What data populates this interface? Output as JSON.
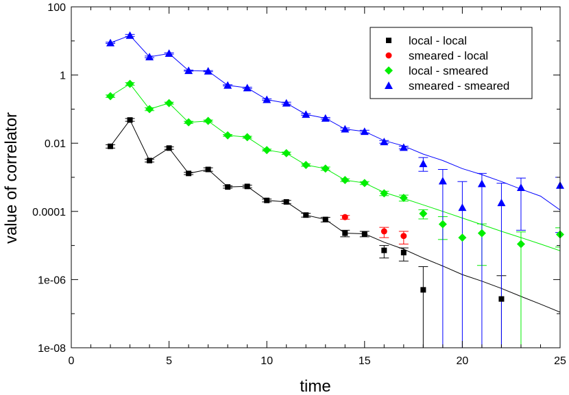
{
  "chart_data": {
    "type": "scatter",
    "title": "",
    "xlabel": "time",
    "ylabel": "value of correlator",
    "xlim": [
      0,
      25
    ],
    "ylim": [
      1e-08,
      100
    ],
    "yscale": "log",
    "grid": false,
    "legend_position": "top-right",
    "x_ticks": [
      0,
      5,
      10,
      15,
      20,
      25
    ],
    "x_tick_labels": [
      "0",
      "5",
      "10",
      "15",
      "20",
      "25"
    ],
    "y_ticks": [
      1e-08,
      1e-06,
      0.0001,
      0.01,
      1,
      100
    ],
    "y_tick_labels": [
      "1e-08",
      "1e-06",
      "0.0001",
      "0.01",
      "1",
      "100"
    ],
    "series": [
      {
        "name": "local - local",
        "color": "#000000",
        "marker": "square",
        "points": [
          {
            "x": 2,
            "y": 0.0081,
            "lo": 0.0072,
            "hi": 0.009
          },
          {
            "x": 3,
            "y": 0.048,
            "lo": 0.044,
            "hi": 0.053
          },
          {
            "x": 4,
            "y": 0.0031,
            "lo": 0.0028,
            "hi": 0.0034
          },
          {
            "x": 5,
            "y": 0.0072,
            "lo": 0.0066,
            "hi": 0.0078
          },
          {
            "x": 6,
            "y": 0.0013,
            "lo": 0.0012,
            "hi": 0.0014
          },
          {
            "x": 7,
            "y": 0.0017,
            "lo": 0.0015,
            "hi": 0.0019
          },
          {
            "x": 8,
            "y": 0.00052,
            "lo": 0.00048,
            "hi": 0.00056
          },
          {
            "x": 9,
            "y": 0.00054,
            "lo": 0.00049,
            "hi": 0.00059
          },
          {
            "x": 10,
            "y": 0.00021,
            "lo": 0.00019,
            "hi": 0.00023
          },
          {
            "x": 11,
            "y": 0.00019,
            "lo": 0.00017,
            "hi": 0.00021
          },
          {
            "x": 12,
            "y": 7.8e-05,
            "lo": 6.8e-05,
            "hi": 8.8e-05
          },
          {
            "x": 13,
            "y": 5.8e-05,
            "lo": 4.9e-05,
            "hi": 6.7e-05
          },
          {
            "x": 14,
            "y": 2.3e-05,
            "lo": 1.8e-05,
            "hi": 2.8e-05
          },
          {
            "x": 15,
            "y": 2.2e-05,
            "lo": 1.8e-05,
            "hi": 2.6e-05
          },
          {
            "x": 16,
            "y": 7.2e-06,
            "lo": 4.3e-06,
            "hi": 1e-05
          },
          {
            "x": 17,
            "y": 6.2e-06,
            "lo": 3.5e-06,
            "hi": 8.5e-06
          },
          {
            "x": 18,
            "y": 5e-07,
            "lo": 1e-08,
            "hi": 2.4e-06
          },
          {
            "x": 22,
            "y": 2.7e-07,
            "lo": 1e-08,
            "hi": 1.3e-06
          }
        ],
        "fit": [
          [
            2,
            0.0081
          ],
          [
            3,
            0.048
          ],
          [
            4,
            0.0031
          ],
          [
            5,
            0.0072
          ],
          [
            6,
            0.0013
          ],
          [
            7,
            0.0017
          ],
          [
            8,
            0.00052
          ],
          [
            9,
            0.00054
          ],
          [
            10,
            0.00021
          ],
          [
            11,
            0.00019
          ],
          [
            12,
            7.8e-05
          ],
          [
            13,
            5.8e-05
          ],
          [
            14,
            2.3e-05
          ],
          [
            15,
            2.2e-05
          ],
          [
            16,
            1.25e-05
          ],
          [
            17,
            7.8e-06
          ],
          [
            18,
            4.3e-06
          ],
          [
            19,
            2.5e-06
          ],
          [
            20,
            1.4e-06
          ],
          [
            21,
            9e-07
          ],
          [
            22,
            5.5e-07
          ],
          [
            23,
            3.2e-07
          ],
          [
            24,
            1.9e-07
          ],
          [
            25,
            1.1e-07
          ]
        ]
      },
      {
        "name": "smeared - local",
        "color": "#ff0000",
        "marker": "circle",
        "points": [
          {
            "x": 14,
            "y": 6.8e-05,
            "lo": 5.9e-05,
            "hi": 7.6e-05
          },
          {
            "x": 16,
            "y": 2.6e-05,
            "lo": 1.7e-05,
            "hi": 3.4e-05
          },
          {
            "x": 17,
            "y": 1.9e-05,
            "lo": 1.1e-05,
            "hi": 2.6e-05
          }
        ]
      },
      {
        "name": "local - smeared",
        "color": "#00ee00",
        "marker": "diamond",
        "points": [
          {
            "x": 2,
            "y": 0.24,
            "lo": 0.22,
            "hi": 0.26
          },
          {
            "x": 3,
            "y": 0.55,
            "lo": 0.5,
            "hi": 0.6
          },
          {
            "x": 4,
            "y": 0.1,
            "lo": 0.09,
            "hi": 0.11
          },
          {
            "x": 5,
            "y": 0.15,
            "lo": 0.14,
            "hi": 0.16
          },
          {
            "x": 6,
            "y": 0.041,
            "lo": 0.038,
            "hi": 0.044
          },
          {
            "x": 7,
            "y": 0.045,
            "lo": 0.042,
            "hi": 0.048
          },
          {
            "x": 8,
            "y": 0.017,
            "lo": 0.016,
            "hi": 0.018
          },
          {
            "x": 9,
            "y": 0.015,
            "lo": 0.014,
            "hi": 0.016
          },
          {
            "x": 10,
            "y": 0.0063,
            "lo": 0.0059,
            "hi": 0.0067
          },
          {
            "x": 11,
            "y": 0.0051,
            "lo": 0.0047,
            "hi": 0.0055
          },
          {
            "x": 12,
            "y": 0.0023,
            "lo": 0.0021,
            "hi": 0.0025
          },
          {
            "x": 13,
            "y": 0.0018,
            "lo": 0.0016,
            "hi": 0.002
          },
          {
            "x": 14,
            "y": 0.00083,
            "lo": 0.00075,
            "hi": 0.00091
          },
          {
            "x": 15,
            "y": 0.00068,
            "lo": 0.00061,
            "hi": 0.00075
          },
          {
            "x": 16,
            "y": 0.00034,
            "lo": 0.00029,
            "hi": 0.00039
          },
          {
            "x": 17,
            "y": 0.00025,
            "lo": 0.0002,
            "hi": 0.0003
          },
          {
            "x": 18,
            "y": 8.6e-05,
            "lo": 6e-05,
            "hi": 0.000112
          },
          {
            "x": 19,
            "y": 4.2e-05,
            "lo": 1.5e-05,
            "hi": 7e-05
          },
          {
            "x": 20,
            "y": 1.7e-05
          },
          {
            "x": 21,
            "y": 2.3e-05,
            "lo": 2.6e-06,
            "hi": 4.3e-05
          },
          {
            "x": 23,
            "y": 1.1e-05,
            "lo": 1e-08,
            "hi": 2.5e-05
          },
          {
            "x": 25,
            "y": 2.1e-05,
            "lo": 9e-06,
            "hi": 3.3e-05
          }
        ],
        "fit": [
          [
            2,
            0.24
          ],
          [
            3,
            0.55
          ],
          [
            4,
            0.1
          ],
          [
            5,
            0.15
          ],
          [
            6,
            0.041
          ],
          [
            7,
            0.045
          ],
          [
            8,
            0.017
          ],
          [
            9,
            0.015
          ],
          [
            10,
            0.0063
          ],
          [
            11,
            0.0051
          ],
          [
            12,
            0.0023
          ],
          [
            13,
            0.0018
          ],
          [
            14,
            0.00083
          ],
          [
            15,
            0.00068
          ],
          [
            16,
            0.00036
          ],
          [
            17,
            0.00024
          ],
          [
            18,
            0.000155
          ],
          [
            19,
            0.0001
          ],
          [
            20,
            6.4e-05
          ],
          [
            21,
            4.1e-05
          ],
          [
            22,
            2.6e-05
          ],
          [
            23,
            1.7e-05
          ],
          [
            24,
            1.1e-05
          ],
          [
            25,
            7e-06
          ]
        ]
      },
      {
        "name": "smeared - smeared",
        "color": "#0000ff",
        "marker": "triangle",
        "points": [
          {
            "x": 2,
            "y": 8.8,
            "lo": 8.4,
            "hi": 9.2
          },
          {
            "x": 3,
            "y": 14.5,
            "lo": 13.5,
            "hi": 15.5
          },
          {
            "x": 4,
            "y": 3.4,
            "lo": 3.2,
            "hi": 3.6
          },
          {
            "x": 5,
            "y": 4.3,
            "lo": 4.1,
            "hi": 4.5
          },
          {
            "x": 6,
            "y": 1.35,
            "lo": 1.3,
            "hi": 1.4
          },
          {
            "x": 7,
            "y": 1.3,
            "lo": 1.25,
            "hi": 1.35
          },
          {
            "x": 8,
            "y": 0.5,
            "lo": 0.48,
            "hi": 0.52
          },
          {
            "x": 9,
            "y": 0.42,
            "lo": 0.4,
            "hi": 0.44
          },
          {
            "x": 10,
            "y": 0.19,
            "lo": 0.18,
            "hi": 0.2
          },
          {
            "x": 11,
            "y": 0.15,
            "lo": 0.14,
            "hi": 0.16
          },
          {
            "x": 12,
            "y": 0.07,
            "lo": 0.066,
            "hi": 0.074
          },
          {
            "x": 13,
            "y": 0.054,
            "lo": 0.051,
            "hi": 0.057
          },
          {
            "x": 14,
            "y": 0.026,
            "lo": 0.024,
            "hi": 0.028
          },
          {
            "x": 15,
            "y": 0.022,
            "lo": 0.02,
            "hi": 0.024
          },
          {
            "x": 16,
            "y": 0.011,
            "lo": 0.01,
            "hi": 0.012
          },
          {
            "x": 17,
            "y": 0.0075,
            "lo": 0.0068,
            "hi": 0.0082
          },
          {
            "x": 18,
            "y": 0.0025,
            "lo": 0.0015,
            "hi": 0.0038
          },
          {
            "x": 19,
            "y": 0.00078,
            "lo": 1e-08,
            "hi": 0.0017
          },
          {
            "x": 20,
            "y": 0.00013,
            "lo": 1e-08,
            "hi": 0.00075
          },
          {
            "x": 21,
            "y": 0.00065,
            "lo": 1e-08,
            "hi": 0.0013
          },
          {
            "x": 22,
            "y": 0.00018,
            "lo": 1e-08,
            "hi": 0.00067
          },
          {
            "x": 23,
            "y": 0.0005,
            "lo": 2.8e-05,
            "hi": 0.00095
          },
          {
            "x": 25,
            "y": 0.00058,
            "lo": 2.4e-05,
            "hi": 0.001
          }
        ],
        "fit": [
          [
            2,
            8.8
          ],
          [
            3,
            14.5
          ],
          [
            4,
            3.4
          ],
          [
            5,
            4.3
          ],
          [
            6,
            1.35
          ],
          [
            7,
            1.3
          ],
          [
            8,
            0.5
          ],
          [
            9,
            0.42
          ],
          [
            10,
            0.19
          ],
          [
            11,
            0.15
          ],
          [
            12,
            0.07
          ],
          [
            13,
            0.054
          ],
          [
            14,
            0.026
          ],
          [
            15,
            0.022
          ],
          [
            16,
            0.012
          ],
          [
            17,
            0.0083
          ],
          [
            18,
            0.0048
          ],
          [
            19,
            0.0031
          ],
          [
            20,
            0.0018
          ],
          [
            21,
            0.0012
          ],
          [
            22,
            0.00075
          ],
          [
            23,
            0.00045
          ],
          [
            24,
            0.00028
          ],
          [
            25,
            0.00011
          ]
        ]
      }
    ]
  }
}
